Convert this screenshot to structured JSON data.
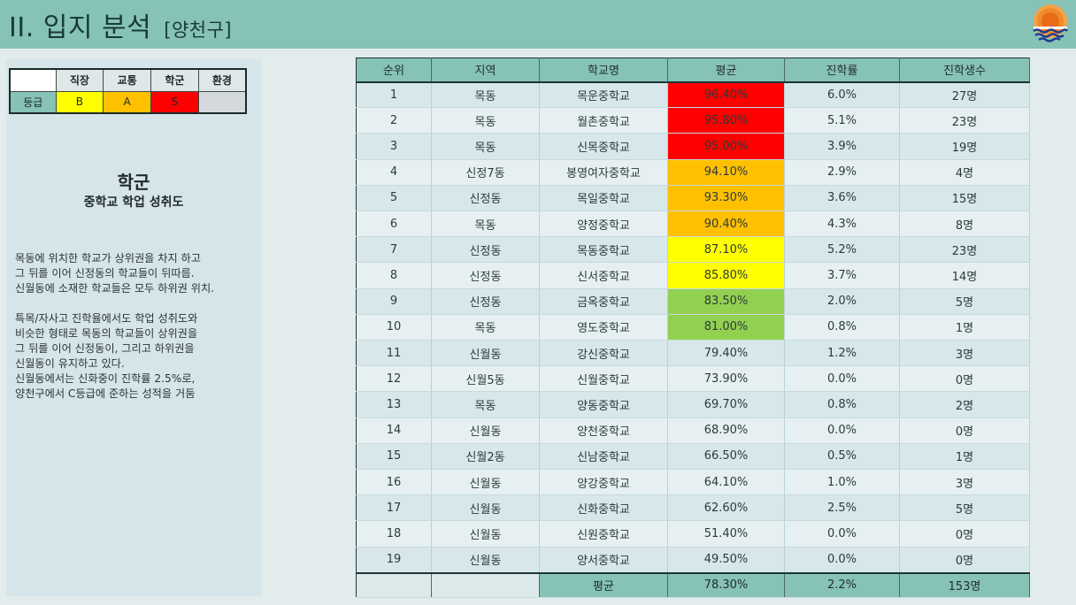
{
  "header": {
    "title": "II. 입지 분석",
    "subtitle": "[양천구]",
    "logo_icon": "sunrise-over-water-icon"
  },
  "grade": {
    "headers": [
      "직장",
      "교통",
      "학군",
      "환경"
    ],
    "row_label": "등급",
    "values": [
      "B",
      "A",
      "S",
      ""
    ],
    "colors": [
      "#ffff00",
      "#ffc000",
      "#ff0000",
      "#d6d9dc"
    ]
  },
  "section": {
    "title": "학군",
    "subtitle": "중학교 학업 성취도"
  },
  "description": {
    "para1": [
      "목동에 위치한 학교가 상위권을 차지 하고",
      "그 뒤를 이어 신정동의 학교들이 뒤따름.",
      "신월동에 소재한 학교들은 모두 하위권 위치."
    ],
    "para2": [
      "특목/자사고 진학율에서도 학업 성취도와",
      "비슷한 형태로 목동의 학교들이 상위권을",
      "그 뒤를 이어 신정동이, 그리고 하위권을",
      "신월동이 유지하고 있다.",
      "신월동에서는 신화중이 진학률 2.5%로,",
      "양천구에서 C등급에 준하는 성적을 거둠"
    ]
  },
  "table": {
    "headers": [
      "순위",
      "지역",
      "학교명",
      "평균",
      "진학률",
      "진학생수"
    ],
    "rows": [
      {
        "rank": "1",
        "area": "목동",
        "school": "목운중학교",
        "avg": "96.40%",
        "rate": "6.0%",
        "count": "27명",
        "color": "#ff0000"
      },
      {
        "rank": "2",
        "area": "목동",
        "school": "월촌중학교",
        "avg": "95.80%",
        "rate": "5.1%",
        "count": "23명",
        "color": "#ff0000"
      },
      {
        "rank": "3",
        "area": "목동",
        "school": "신목중학교",
        "avg": "95.00%",
        "rate": "3.9%",
        "count": "19명",
        "color": "#ff0000"
      },
      {
        "rank": "4",
        "area": "신정7동",
        "school": "봉영여자중학교",
        "avg": "94.10%",
        "rate": "2.9%",
        "count": "4명",
        "color": "#ffc000"
      },
      {
        "rank": "5",
        "area": "신정동",
        "school": "목일중학교",
        "avg": "93.30%",
        "rate": "3.6%",
        "count": "15명",
        "color": "#ffc000"
      },
      {
        "rank": "6",
        "area": "목동",
        "school": "양정중학교",
        "avg": "90.40%",
        "rate": "4.3%",
        "count": "8명",
        "color": "#ffc000"
      },
      {
        "rank": "7",
        "area": "신정동",
        "school": "목동중학교",
        "avg": "87.10%",
        "rate": "5.2%",
        "count": "23명",
        "color": "#ffff00"
      },
      {
        "rank": "8",
        "area": "신정동",
        "school": "신서중학교",
        "avg": "85.80%",
        "rate": "3.7%",
        "count": "14명",
        "color": "#ffff00"
      },
      {
        "rank": "9",
        "area": "신정동",
        "school": "금옥중학교",
        "avg": "83.50%",
        "rate": "2.0%",
        "count": "5명",
        "color": "#92d050"
      },
      {
        "rank": "10",
        "area": "목동",
        "school": "영도중학교",
        "avg": "81.00%",
        "rate": "0.8%",
        "count": "1명",
        "color": "#92d050"
      },
      {
        "rank": "11",
        "area": "신월동",
        "school": "강신중학교",
        "avg": "79.40%",
        "rate": "1.2%",
        "count": "3명",
        "color": ""
      },
      {
        "rank": "12",
        "area": "신월5동",
        "school": "신월중학교",
        "avg": "73.90%",
        "rate": "0.0%",
        "count": "0명",
        "color": ""
      },
      {
        "rank": "13",
        "area": "목동",
        "school": "양동중학교",
        "avg": "69.70%",
        "rate": "0.8%",
        "count": "2명",
        "color": ""
      },
      {
        "rank": "14",
        "area": "신월동",
        "school": "양천중학교",
        "avg": "68.90%",
        "rate": "0.0%",
        "count": "0명",
        "color": ""
      },
      {
        "rank": "15",
        "area": "신월2동",
        "school": "신남중학교",
        "avg": "66.50%",
        "rate": "0.5%",
        "count": "1명",
        "color": ""
      },
      {
        "rank": "16",
        "area": "신월동",
        "school": "양강중학교",
        "avg": "64.10%",
        "rate": "1.0%",
        "count": "3명",
        "color": ""
      },
      {
        "rank": "17",
        "area": "신월동",
        "school": "신화중학교",
        "avg": "62.60%",
        "rate": "2.5%",
        "count": "5명",
        "color": ""
      },
      {
        "rank": "18",
        "area": "신월동",
        "school": "신원중학교",
        "avg": "51.40%",
        "rate": "0.0%",
        "count": "0명",
        "color": ""
      },
      {
        "rank": "19",
        "area": "신월동",
        "school": "양서중학교",
        "avg": "49.50%",
        "rate": "0.0%",
        "count": "0명",
        "color": ""
      }
    ],
    "footer": {
      "label": "평균",
      "avg": "78.30%",
      "rate": "2.2%",
      "count": "153명"
    }
  }
}
